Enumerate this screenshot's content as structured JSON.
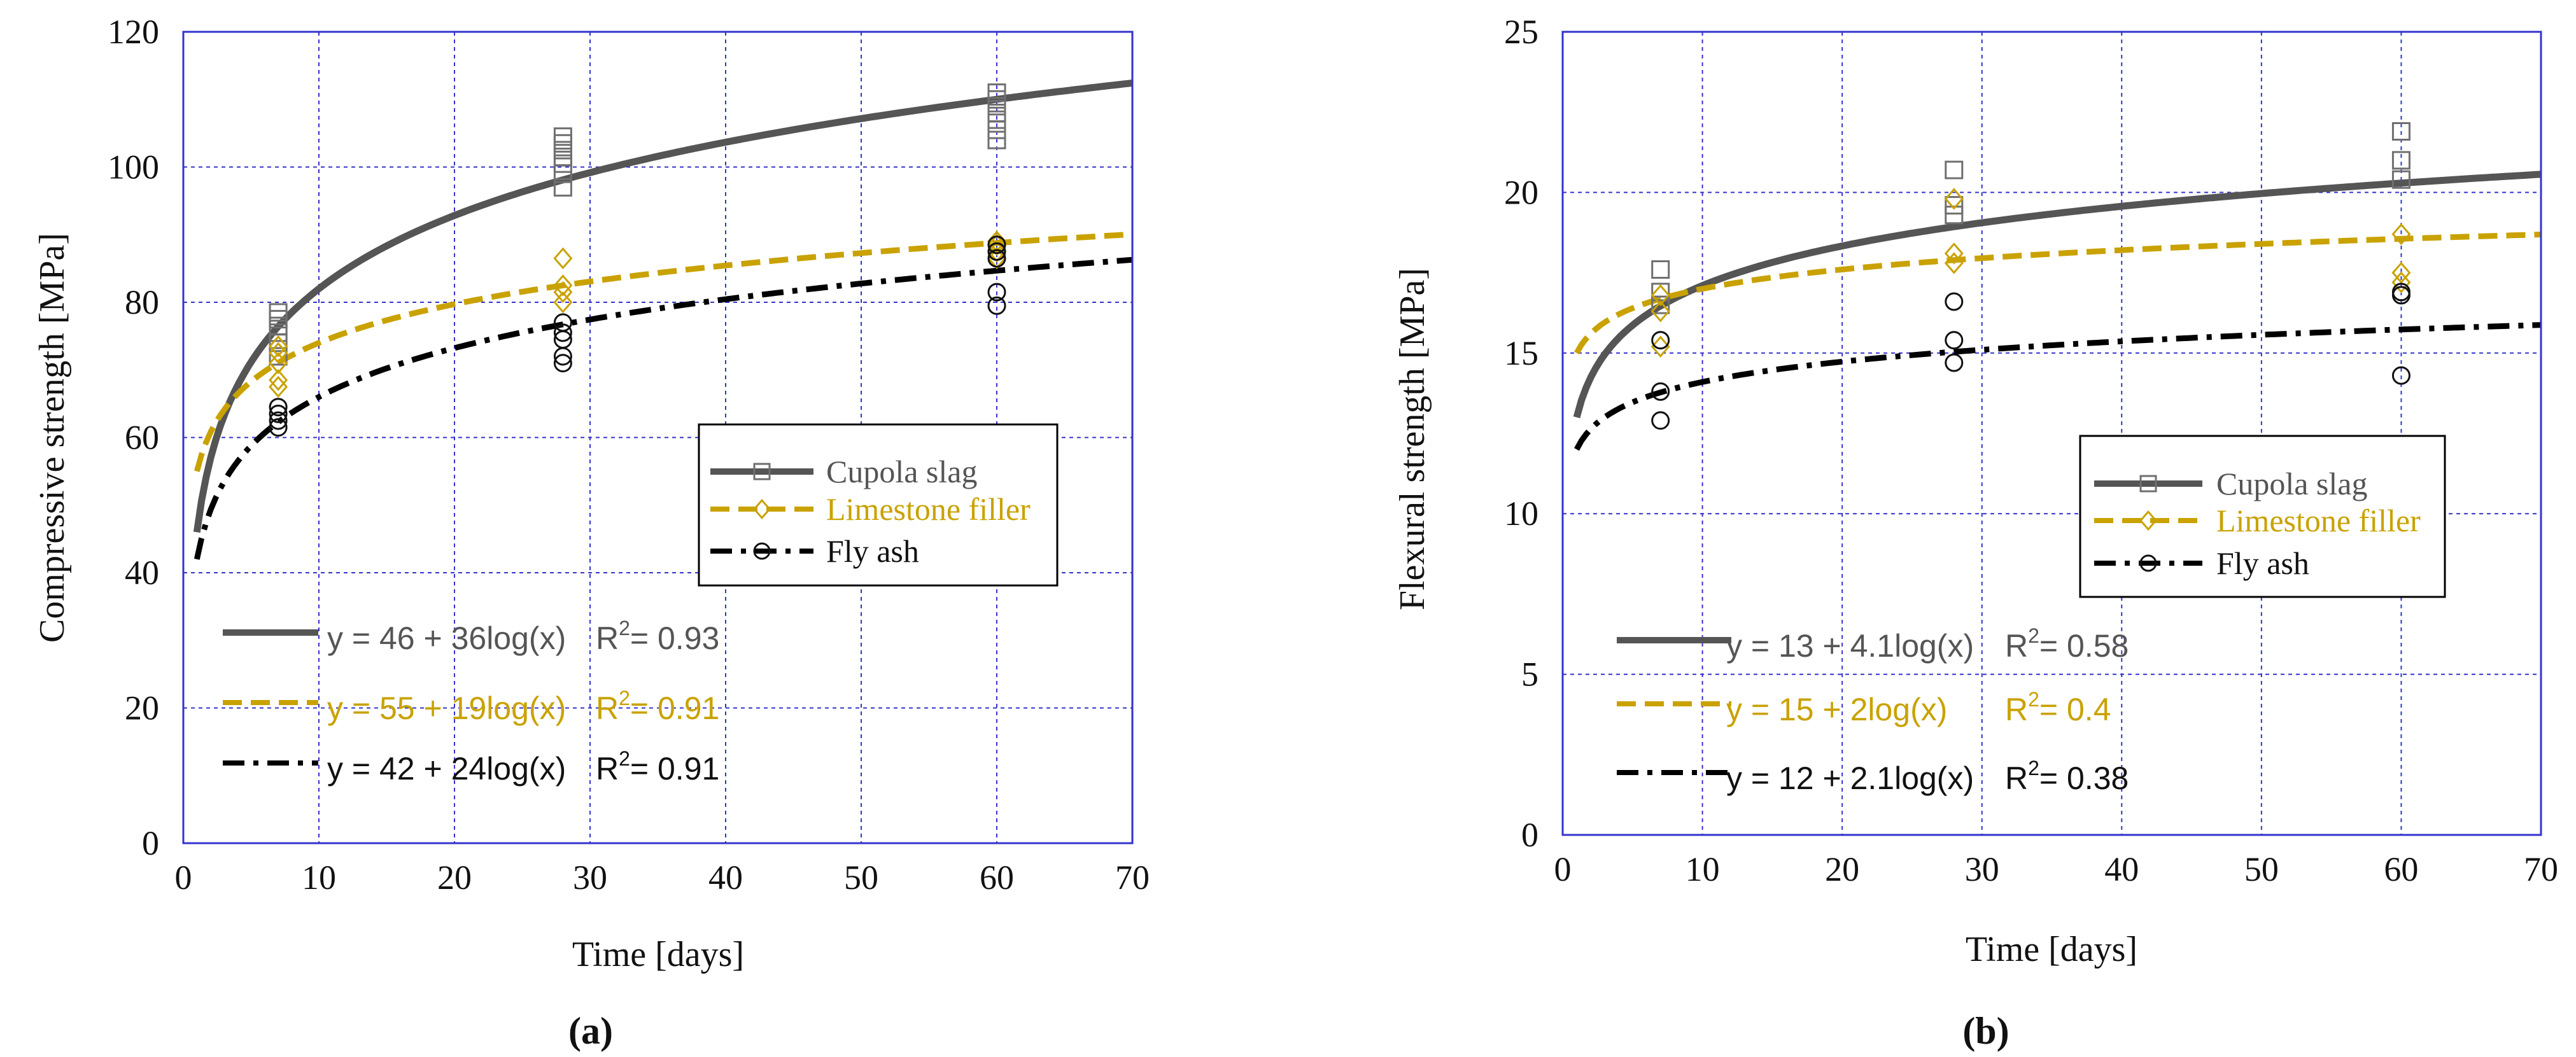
{
  "chart_data": [
    {
      "panel_label": "a",
      "type": "scatter",
      "title": "",
      "xlabel": "Time [days]",
      "ylabel": "Compressive strength [MPa]",
      "xlim": [
        0,
        70
      ],
      "ylim": [
        0,
        120
      ],
      "xticks": [
        0,
        10,
        20,
        30,
        40,
        50,
        60,
        70
      ],
      "yticks": [
        0,
        20,
        40,
        60,
        80,
        100,
        120
      ],
      "grid": true,
      "legend_position": "center-right",
      "series": [
        {
          "name": "Cupola slag",
          "marker": "square",
          "color": "#6f6f6f",
          "line_color": "#555555",
          "dash": "solid",
          "points": [
            [
              7,
              72
            ],
            [
              7,
              74
            ],
            [
              7,
              75.5
            ],
            [
              7,
              76.5
            ],
            [
              7,
              77.5
            ],
            [
              7,
              78.5
            ],
            [
              28,
              97
            ],
            [
              28,
              99
            ],
            [
              28,
              100.5
            ],
            [
              28,
              101.5
            ],
            [
              28,
              102.5
            ],
            [
              28,
              103.5
            ],
            [
              28,
              104.5
            ],
            [
              60,
              104
            ],
            [
              60,
              105.5
            ],
            [
              60,
              107
            ],
            [
              60,
              108
            ],
            [
              60,
              109
            ],
            [
              60,
              110
            ],
            [
              60,
              111
            ]
          ],
          "fit": {
            "a": 46,
            "b": 36,
            "xmin": 1,
            "xmax": 70
          },
          "equation": "y = 46 + 36log(x)",
          "r2": "= 0.93"
        },
        {
          "name": "Limestone filler",
          "marker": "diamond",
          "color": "#c9a200",
          "line_color": "#c9a200",
          "dash": "dashed",
          "points": [
            [
              7,
              67.5
            ],
            [
              7,
              68.5
            ],
            [
              7,
              71
            ],
            [
              7,
              72.5
            ],
            [
              7,
              73.5
            ],
            [
              28,
              80
            ],
            [
              28,
              81.5
            ],
            [
              28,
              82.5
            ],
            [
              28,
              86.5
            ],
            [
              60,
              86.5
            ],
            [
              60,
              87.5
            ],
            [
              60,
              88.5
            ],
            [
              60,
              89
            ]
          ],
          "fit": {
            "a": 55,
            "b": 19,
            "xmin": 1,
            "xmax": 70
          },
          "equation": "y = 55 + 19log(x)",
          "r2": "= 0.91"
        },
        {
          "name": "Fly ash",
          "marker": "circle",
          "color": "#111111",
          "line_color": "#000000",
          "dash": "dashdot",
          "points": [
            [
              7,
              61.5
            ],
            [
              7,
              62.5
            ],
            [
              7,
              63.5
            ],
            [
              7,
              64.5
            ],
            [
              28,
              71
            ],
            [
              28,
              72
            ],
            [
              28,
              74.5
            ],
            [
              28,
              75.5
            ],
            [
              28,
              77
            ],
            [
              60,
              79.5
            ],
            [
              60,
              81.5
            ],
            [
              60,
              86.5
            ],
            [
              60,
              87.5
            ],
            [
              60,
              88.5
            ]
          ],
          "fit": {
            "a": 42,
            "b": 24,
            "xmin": 1,
            "xmax": 70
          },
          "equation": "y = 42 + 24log(x)",
          "r2": "= 0.91"
        }
      ]
    },
    {
      "panel_label": "b",
      "type": "scatter",
      "title": "",
      "xlabel": "Time [days]",
      "ylabel": "Flexural strength [MPa]",
      "xlim": [
        0,
        70
      ],
      "ylim": [
        0,
        25
      ],
      "xticks": [
        0,
        10,
        20,
        30,
        40,
        50,
        60,
        70
      ],
      "yticks": [
        0,
        5,
        10,
        15,
        20,
        25
      ],
      "grid": true,
      "legend_position": "center-right",
      "series": [
        {
          "name": "Cupola slag",
          "marker": "square",
          "color": "#6f6f6f",
          "line_color": "#555555",
          "dash": "solid",
          "points": [
            [
              7,
              16.5
            ],
            [
              7,
              16.9
            ],
            [
              7,
              17.6
            ],
            [
              28,
              19.3
            ],
            [
              28,
              19.6
            ],
            [
              28,
              20.7
            ],
            [
              60,
              20.4
            ],
            [
              60,
              21.0
            ],
            [
              60,
              21.9
            ]
          ],
          "fit": {
            "a": 13,
            "b": 4.1,
            "xmin": 1,
            "xmax": 70
          },
          "equation": "y = 13 + 4.1log(x)",
          "r2": "= 0.58"
        },
        {
          "name": "Limestone filler",
          "marker": "diamond",
          "color": "#c9a200",
          "line_color": "#c9a200",
          "dash": "dashed",
          "points": [
            [
              7,
              15.2
            ],
            [
              7,
              16.3
            ],
            [
              7,
              16.8
            ],
            [
              28,
              17.8
            ],
            [
              28,
              18.1
            ],
            [
              28,
              19.8
            ],
            [
              60,
              17.2
            ],
            [
              60,
              17.5
            ],
            [
              60,
              18.7
            ]
          ],
          "fit": {
            "a": 15,
            "b": 2,
            "xmin": 1,
            "xmax": 70
          },
          "equation": "y = 15 + 2log(x)",
          "r2": "= 0.4"
        },
        {
          "name": "Fly ash",
          "marker": "circle",
          "color": "#111111",
          "line_color": "#000000",
          "dash": "dashdot",
          "points": [
            [
              7,
              12.9
            ],
            [
              7,
              13.8
            ],
            [
              7,
              15.4
            ],
            [
              28,
              14.7
            ],
            [
              28,
              15.4
            ],
            [
              28,
              16.6
            ],
            [
              60,
              14.3
            ],
            [
              60,
              16.8
            ],
            [
              60,
              16.9
            ]
          ],
          "fit": {
            "a": 12,
            "b": 2.1,
            "xmin": 1,
            "xmax": 70
          },
          "equation": "y = 12 + 2.1log(x)",
          "r2": "= 0.38"
        }
      ]
    }
  ],
  "panel_labels": {
    "a": "(a)",
    "b": "(b)"
  },
  "r2_prefix": "R",
  "r2_superscript": "2"
}
